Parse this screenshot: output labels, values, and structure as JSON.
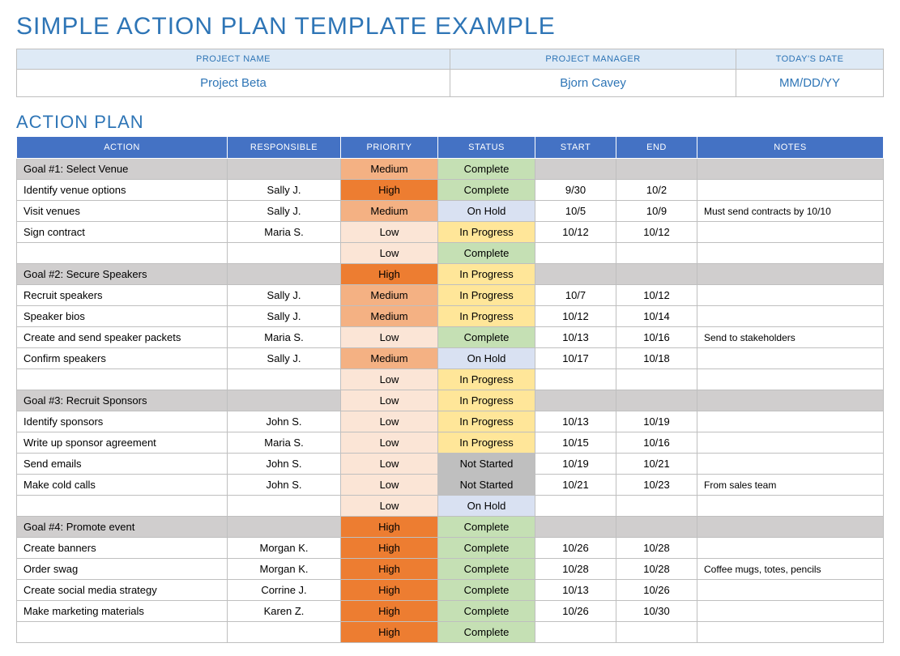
{
  "title": "SIMPLE ACTION PLAN TEMPLATE EXAMPLE",
  "meta": {
    "headers": [
      "PROJECT NAME",
      "PROJECT MANAGER",
      "TODAY'S DATE"
    ],
    "values": [
      "Project Beta",
      "Bjorn Cavey",
      "MM/DD/YY"
    ],
    "col_widths": [
      "50%",
      "33%",
      "17%"
    ]
  },
  "section_title": "ACTION PLAN",
  "columns": [
    "ACTION",
    "RESPONSIBLE",
    "PRIORITY",
    "STATUS",
    "START",
    "END",
    "NOTES"
  ],
  "priority_colors": {
    "High": "#ed7d31",
    "Medium": "#f4b183",
    "Low": "#fbe5d6"
  },
  "status_colors": {
    "Complete": "#c5e0b4",
    "On Hold": "#d9e1f2",
    "In Progress": "#ffe699",
    "Not Started": "#bfbfbf"
  },
  "goal_row_bg": "#d0cece",
  "header_bg": "#4472c4",
  "header_fg": "#ffffff",
  "meta_header_bg": "#deeaf6",
  "title_color": "#2e75b6",
  "border_color": "#bfbfbf",
  "rows": [
    {
      "type": "goal",
      "action": "Goal #1:  Select Venue",
      "responsible": "",
      "priority": "Medium",
      "status": "Complete",
      "start": "",
      "end": "",
      "notes": ""
    },
    {
      "type": "task",
      "action": "Identify venue options",
      "responsible": "Sally J.",
      "priority": "High",
      "status": "Complete",
      "start": "9/30",
      "end": "10/2",
      "notes": ""
    },
    {
      "type": "task",
      "action": "Visit venues",
      "responsible": "Sally J.",
      "priority": "Medium",
      "status": "On Hold",
      "start": "10/5",
      "end": "10/9",
      "notes": "Must send contracts by 10/10"
    },
    {
      "type": "task",
      "action": "Sign contract",
      "responsible": "Maria S.",
      "priority": "Low",
      "status": "In Progress",
      "start": "10/12",
      "end": "10/12",
      "notes": ""
    },
    {
      "type": "task",
      "action": "",
      "responsible": "",
      "priority": "Low",
      "status": "Complete",
      "start": "",
      "end": "",
      "notes": ""
    },
    {
      "type": "goal",
      "action": "Goal #2: Secure Speakers",
      "responsible": "",
      "priority": "High",
      "status": "In Progress",
      "start": "",
      "end": "",
      "notes": ""
    },
    {
      "type": "task",
      "action": "Recruit speakers",
      "responsible": "Sally J.",
      "priority": "Medium",
      "status": "In Progress",
      "start": "10/7",
      "end": "10/12",
      "notes": ""
    },
    {
      "type": "task",
      "action": "Speaker bios",
      "responsible": "Sally J.",
      "priority": "Medium",
      "status": "In Progress",
      "start": "10/12",
      "end": "10/14",
      "notes": ""
    },
    {
      "type": "task",
      "action": "Create and send speaker packets",
      "responsible": "Maria S.",
      "priority": "Low",
      "status": "Complete",
      "start": "10/13",
      "end": "10/16",
      "notes": "Send to stakeholders"
    },
    {
      "type": "task",
      "action": "Confirm speakers",
      "responsible": "Sally J.",
      "priority": "Medium",
      "status": "On Hold",
      "start": "10/17",
      "end": "10/18",
      "notes": ""
    },
    {
      "type": "task",
      "action": "",
      "responsible": "",
      "priority": "Low",
      "status": "In Progress",
      "start": "",
      "end": "",
      "notes": ""
    },
    {
      "type": "goal",
      "action": "Goal #3: Recruit Sponsors",
      "responsible": "",
      "priority": "Low",
      "status": "In Progress",
      "start": "",
      "end": "",
      "notes": ""
    },
    {
      "type": "task",
      "action": "Identify sponsors",
      "responsible": "John S.",
      "priority": "Low",
      "status": "In Progress",
      "start": "10/13",
      "end": "10/19",
      "notes": ""
    },
    {
      "type": "task",
      "action": "Write up sponsor agreement",
      "responsible": "Maria S.",
      "priority": "Low",
      "status": "In Progress",
      "start": "10/15",
      "end": "10/16",
      "notes": ""
    },
    {
      "type": "task",
      "action": "Send emails",
      "responsible": "John S.",
      "priority": "Low",
      "status": "Not Started",
      "start": "10/19",
      "end": "10/21",
      "notes": ""
    },
    {
      "type": "task",
      "action": "Make cold calls",
      "responsible": "John S.",
      "priority": "Low",
      "status": "Not Started",
      "start": "10/21",
      "end": "10/23",
      "notes": "From sales team"
    },
    {
      "type": "task",
      "action": "",
      "responsible": "",
      "priority": "Low",
      "status": "On Hold",
      "start": "",
      "end": "",
      "notes": ""
    },
    {
      "type": "goal",
      "action": "Goal #4: Promote event",
      "responsible": "",
      "priority": "High",
      "status": "Complete",
      "start": "",
      "end": "",
      "notes": ""
    },
    {
      "type": "task",
      "action": "Create banners",
      "responsible": "Morgan K.",
      "priority": "High",
      "status": "Complete",
      "start": "10/26",
      "end": "10/28",
      "notes": ""
    },
    {
      "type": "task",
      "action": "Order swag",
      "responsible": "Morgan K.",
      "priority": "High",
      "status": "Complete",
      "start": "10/28",
      "end": "10/28",
      "notes": "Coffee mugs, totes, pencils"
    },
    {
      "type": "task",
      "action": "Create social media strategy",
      "responsible": "Corrine J.",
      "priority": "High",
      "status": "Complete",
      "start": "10/13",
      "end": "10/26",
      "notes": ""
    },
    {
      "type": "task",
      "action": "Make marketing materials",
      "responsible": "Karen Z.",
      "priority": "High",
      "status": "Complete",
      "start": "10/26",
      "end": "10/30",
      "notes": ""
    },
    {
      "type": "task",
      "action": "",
      "responsible": "",
      "priority": "High",
      "status": "Complete",
      "start": "",
      "end": "",
      "notes": ""
    }
  ]
}
